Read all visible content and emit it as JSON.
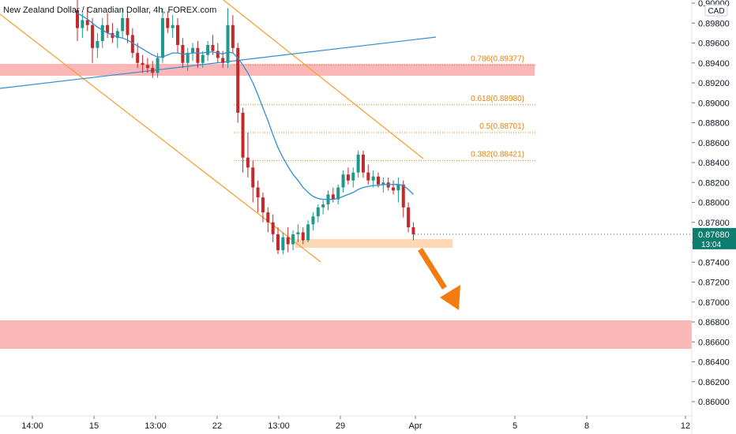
{
  "header": {
    "title": "New Zealand Dollar / Canadian Dollar, 4h, FOREX.com",
    "currency": "CAD"
  },
  "price_axis": {
    "ticks": [
      "0.90000",
      "0.89800",
      "0.89600",
      "0.89400",
      "0.89200",
      "0.89000",
      "0.88800",
      "0.88600",
      "0.88400",
      "0.88200",
      "0.88000",
      "0.87800",
      "0.87600",
      "0.87400",
      "0.87200",
      "0.87000",
      "0.86800",
      "0.86600",
      "0.86400",
      "0.86200",
      "0.86000"
    ]
  },
  "time_axis": {
    "ticks": [
      "14:00",
      "15",
      "13:00",
      "22",
      "13:00",
      "29",
      "Apr",
      "5",
      "8",
      "12"
    ]
  },
  "current_price": {
    "value": "0.87680",
    "countdown": "13:04",
    "color": "#0c7d6e"
  },
  "fib_levels": [
    {
      "label": "0.786(0.89377)",
      "price": 0.89377
    },
    {
      "label": "0.618(0.88980)",
      "price": 0.8898
    },
    {
      "label": "0.5(0.88701)",
      "price": 0.88701
    },
    {
      "label": "0.382(0.88421)",
      "price": 0.88421
    }
  ],
  "colors": {
    "up": "#1d9a8a",
    "down": "#c22a2a",
    "ma": "#2f8fd0",
    "channel": "#f39d2a",
    "trend": "#2f8fd0",
    "zone": "#fbb7b7",
    "zone_small": "#fdd7b6",
    "arrow": "#f37b0f",
    "fib": "#e8820c"
  },
  "chart_data": {
    "type": "candlestick",
    "title": "New Zealand Dollar / Canadian Dollar, 4h, FOREX.com",
    "ylim": [
      0.8592,
      0.9002
    ],
    "grid": false,
    "candles": [
      {
        "o": 0.8993,
        "h": 0.9005,
        "l": 0.8962,
        "c": 0.8975
      },
      {
        "o": 0.8975,
        "h": 0.899,
        "l": 0.8965,
        "c": 0.8983
      },
      {
        "o": 0.8983,
        "h": 0.8996,
        "l": 0.8972,
        "c": 0.8978
      },
      {
        "o": 0.8978,
        "h": 0.8985,
        "l": 0.894,
        "c": 0.8955
      },
      {
        "o": 0.8955,
        "h": 0.897,
        "l": 0.8945,
        "c": 0.8962
      },
      {
        "o": 0.8962,
        "h": 0.8985,
        "l": 0.8955,
        "c": 0.8978
      },
      {
        "o": 0.8978,
        "h": 0.899,
        "l": 0.8965,
        "c": 0.897
      },
      {
        "o": 0.897,
        "h": 0.898,
        "l": 0.896,
        "c": 0.8965
      },
      {
        "o": 0.8965,
        "h": 0.8975,
        "l": 0.8955,
        "c": 0.8972
      },
      {
        "o": 0.8972,
        "h": 0.8995,
        "l": 0.8965,
        "c": 0.8985
      },
      {
        "o": 0.8985,
        "h": 0.8992,
        "l": 0.896,
        "c": 0.8968
      },
      {
        "o": 0.8968,
        "h": 0.8975,
        "l": 0.8945,
        "c": 0.895
      },
      {
        "o": 0.895,
        "h": 0.896,
        "l": 0.8935,
        "c": 0.894
      },
      {
        "o": 0.894,
        "h": 0.8948,
        "l": 0.893,
        "c": 0.8938
      },
      {
        "o": 0.8938,
        "h": 0.8945,
        "l": 0.893,
        "c": 0.8935
      },
      {
        "o": 0.8935,
        "h": 0.8942,
        "l": 0.8925,
        "c": 0.893
      },
      {
        "o": 0.893,
        "h": 0.895,
        "l": 0.8925,
        "c": 0.8945
      },
      {
        "o": 0.8945,
        "h": 0.8995,
        "l": 0.894,
        "c": 0.8985
      },
      {
        "o": 0.8985,
        "h": 0.8992,
        "l": 0.897,
        "c": 0.8975
      },
      {
        "o": 0.8975,
        "h": 0.8988,
        "l": 0.8965,
        "c": 0.8978
      },
      {
        "o": 0.8978,
        "h": 0.8985,
        "l": 0.895,
        "c": 0.8958
      },
      {
        "o": 0.8958,
        "h": 0.8965,
        "l": 0.8935,
        "c": 0.894
      },
      {
        "o": 0.894,
        "h": 0.8955,
        "l": 0.8932,
        "c": 0.895
      },
      {
        "o": 0.895,
        "h": 0.896,
        "l": 0.8942,
        "c": 0.8955
      },
      {
        "o": 0.8955,
        "h": 0.8962,
        "l": 0.8935,
        "c": 0.894
      },
      {
        "o": 0.894,
        "h": 0.8952,
        "l": 0.8935,
        "c": 0.8948
      },
      {
        "o": 0.8948,
        "h": 0.8962,
        "l": 0.8942,
        "c": 0.8958
      },
      {
        "o": 0.8958,
        "h": 0.8968,
        "l": 0.8948,
        "c": 0.8952
      },
      {
        "o": 0.8952,
        "h": 0.896,
        "l": 0.894,
        "c": 0.8945
      },
      {
        "o": 0.8945,
        "h": 0.8952,
        "l": 0.8935,
        "c": 0.894
      },
      {
        "o": 0.894,
        "h": 0.8995,
        "l": 0.8935,
        "c": 0.8978
      },
      {
        "o": 0.8978,
        "h": 0.8988,
        "l": 0.895,
        "c": 0.8955
      },
      {
        "o": 0.8955,
        "h": 0.896,
        "l": 0.888,
        "c": 0.889
      },
      {
        "o": 0.889,
        "h": 0.8895,
        "l": 0.883,
        "c": 0.8845
      },
      {
        "o": 0.8845,
        "h": 0.887,
        "l": 0.8825,
        "c": 0.8835
      },
      {
        "o": 0.8835,
        "h": 0.8842,
        "l": 0.88,
        "c": 0.8815
      },
      {
        "o": 0.8815,
        "h": 0.8822,
        "l": 0.879,
        "c": 0.8805
      },
      {
        "o": 0.8805,
        "h": 0.881,
        "l": 0.878,
        "c": 0.879
      },
      {
        "o": 0.879,
        "h": 0.8795,
        "l": 0.877,
        "c": 0.878
      },
      {
        "o": 0.878,
        "h": 0.8788,
        "l": 0.876,
        "c": 0.8768
      },
      {
        "o": 0.8768,
        "h": 0.8775,
        "l": 0.8748,
        "c": 0.8752
      },
      {
        "o": 0.8752,
        "h": 0.877,
        "l": 0.8748,
        "c": 0.8765
      },
      {
        "o": 0.8765,
        "h": 0.8775,
        "l": 0.875,
        "c": 0.8758
      },
      {
        "o": 0.8758,
        "h": 0.8772,
        "l": 0.8752,
        "c": 0.8768
      },
      {
        "o": 0.8768,
        "h": 0.8778,
        "l": 0.876,
        "c": 0.877
      },
      {
        "o": 0.877,
        "h": 0.8775,
        "l": 0.8758,
        "c": 0.8762
      },
      {
        "o": 0.8762,
        "h": 0.8782,
        "l": 0.876,
        "c": 0.8778
      },
      {
        "o": 0.8778,
        "h": 0.879,
        "l": 0.8772,
        "c": 0.8786
      },
      {
        "o": 0.8786,
        "h": 0.8798,
        "l": 0.878,
        "c": 0.8795
      },
      {
        "o": 0.8795,
        "h": 0.8802,
        "l": 0.8788,
        "c": 0.8798
      },
      {
        "o": 0.8798,
        "h": 0.8812,
        "l": 0.8792,
        "c": 0.8808
      },
      {
        "o": 0.8808,
        "h": 0.8815,
        "l": 0.88,
        "c": 0.8803
      },
      {
        "o": 0.8803,
        "h": 0.8818,
        "l": 0.8798,
        "c": 0.8815
      },
      {
        "o": 0.8815,
        "h": 0.8832,
        "l": 0.881,
        "c": 0.8828
      },
      {
        "o": 0.8828,
        "h": 0.8835,
        "l": 0.8818,
        "c": 0.8822
      },
      {
        "o": 0.8822,
        "h": 0.8835,
        "l": 0.8815,
        "c": 0.883
      },
      {
        "o": 0.883,
        "h": 0.8852,
        "l": 0.8825,
        "c": 0.8848
      },
      {
        "o": 0.8848,
        "h": 0.8852,
        "l": 0.8825,
        "c": 0.883
      },
      {
        "o": 0.883,
        "h": 0.8838,
        "l": 0.8818,
        "c": 0.8822
      },
      {
        "o": 0.8822,
        "h": 0.8832,
        "l": 0.8815,
        "c": 0.8826
      },
      {
        "o": 0.8826,
        "h": 0.883,
        "l": 0.8815,
        "c": 0.8818
      },
      {
        "o": 0.8818,
        "h": 0.8825,
        "l": 0.881,
        "c": 0.882
      },
      {
        "o": 0.882,
        "h": 0.8825,
        "l": 0.8812,
        "c": 0.8815
      },
      {
        "o": 0.8815,
        "h": 0.8822,
        "l": 0.8808,
        "c": 0.8812
      },
      {
        "o": 0.8812,
        "h": 0.8825,
        "l": 0.88,
        "c": 0.8818
      },
      {
        "o": 0.8818,
        "h": 0.8822,
        "l": 0.8785,
        "c": 0.8795
      },
      {
        "o": 0.8795,
        "h": 0.88,
        "l": 0.877,
        "c": 0.8775
      },
      {
        "o": 0.8775,
        "h": 0.878,
        "l": 0.8762,
        "c": 0.8768
      }
    ],
    "moving_average": [
      0.899,
      0.8987,
      0.8984,
      0.898,
      0.8976,
      0.8973,
      0.897,
      0.8968,
      0.8966,
      0.8965,
      0.8963,
      0.896,
      0.8957,
      0.8954,
      0.8951,
      0.8948,
      0.8946,
      0.8946,
      0.8948,
      0.895,
      0.895,
      0.8949,
      0.8949,
      0.895,
      0.895,
      0.895,
      0.8951,
      0.8951,
      0.895,
      0.8949,
      0.8951,
      0.895,
      0.8945,
      0.8938,
      0.893,
      0.892,
      0.8908,
      0.8895,
      0.8882,
      0.8868,
      0.8855,
      0.8845,
      0.8836,
      0.8828,
      0.8822,
      0.8815,
      0.881,
      0.8806,
      0.8804,
      0.8803,
      0.8803,
      0.8803,
      0.8804,
      0.8806,
      0.8808,
      0.881,
      0.8813,
      0.8815,
      0.8816,
      0.8817,
      0.8817,
      0.8818,
      0.8818,
      0.8818,
      0.8818,
      0.8817,
      0.8813,
      0.8808
    ]
  }
}
